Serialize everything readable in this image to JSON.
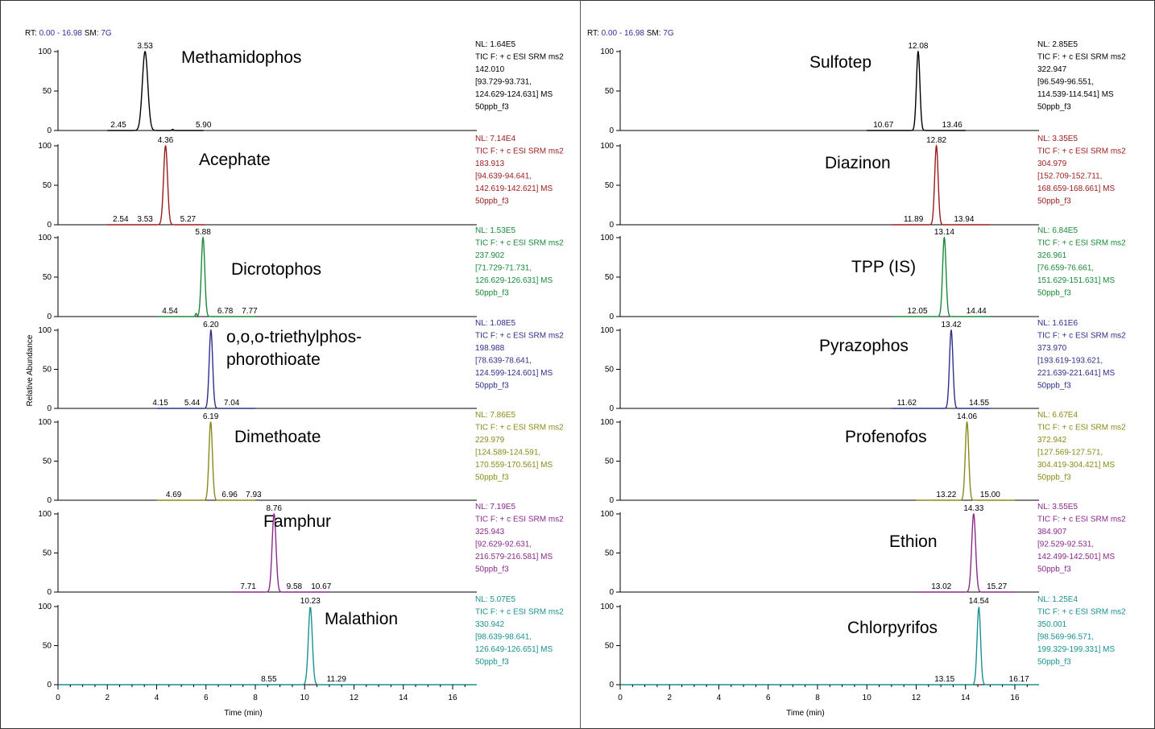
{
  "chart_data": [
    {
      "type": "line",
      "header": {
        "rt_label": "RT:",
        "rt_range": "0.00 - 16.98",
        "sm_label": "SM:",
        "sm_value": "7G"
      },
      "xlabel": "Time (min)",
      "ylabel": "Relative Abundance",
      "xlim": [
        0,
        16.98
      ],
      "ylim": [
        0,
        100
      ],
      "x_ticks": [
        0,
        2,
        4,
        6,
        8,
        10,
        12,
        14,
        16
      ],
      "y_ticks": [
        0,
        50,
        100
      ],
      "traces": [
        {
          "compound": "Methamidophos",
          "color": "#000000",
          "apex": 3.53,
          "width": 0.11,
          "baseline": [
            2.0,
            5.9
          ],
          "peaks": [
            {
              "x": 3.53,
              "y": 100
            },
            {
              "x": 2.45,
              "y": 0.5
            },
            {
              "x": 4.65,
              "y": 1.5
            },
            {
              "x": 5.9,
              "y": 0.3
            }
          ],
          "info": [
            "NL: 1.64E5",
            "TIC F: + c ESI SRM ms2",
            "142.010",
            "[93.729-93.731,",
            "124.629-124.631]  MS",
            "50ppb_f3"
          ]
        },
        {
          "compound": "Acephate",
          "color": "#9b1b1b",
          "apex": 4.36,
          "width": 0.08,
          "baseline": [
            2.0,
            5.95
          ],
          "peaks": [
            {
              "x": 4.36,
              "y": 100
            },
            {
              "x": 2.54,
              "y": 0.3
            },
            {
              "x": 3.53,
              "y": 0.3
            },
            {
              "x": 5.27,
              "y": 0.5
            }
          ],
          "info": [
            "NL: 7.14E4",
            "TIC F: + c ESI SRM ms2",
            "183.913",
            "[94.639-94.641,",
            "142.619-142.621]  MS",
            "50ppb_f3"
          ]
        },
        {
          "compound": "Dicrotophos",
          "color": "#1a8a3a",
          "apex": 5.88,
          "width": 0.07,
          "baseline": [
            4.0,
            8.0
          ],
          "peaks": [
            {
              "x": 5.88,
              "y": 100
            },
            {
              "x": 4.54,
              "y": 0.5
            },
            {
              "x": 5.6,
              "y": 4
            },
            {
              "x": 6.78,
              "y": 0.5
            },
            {
              "x": 7.77,
              "y": 0.3
            }
          ],
          "info": [
            "NL: 1.53E5",
            "TIC F: + c ESI SRM ms2",
            "237.902",
            "[71.729-71.731,",
            "126.629-126.631]  MS",
            "50ppb_f3"
          ]
        },
        {
          "compound": "o,o,o-triethylphos-",
          "compound2": "phorothioate",
          "color": "#2e2e8c",
          "apex": 6.2,
          "width": 0.07,
          "baseline": [
            4.0,
            8.0
          ],
          "peaks": [
            {
              "x": 6.2,
              "y": 100
            },
            {
              "x": 4.15,
              "y": 0.5
            },
            {
              "x": 5.44,
              "y": 0.5
            },
            {
              "x": 7.04,
              "y": 0.5
            }
          ],
          "info": [
            "NL: 1.08E5",
            "TIC F: + c ESI SRM ms2",
            "198.988",
            "[78.639-78.641,",
            "124.599-124.601]  MS",
            "50ppb_f3"
          ]
        },
        {
          "compound": "Dimethoate",
          "color": "#8a8a1a",
          "apex": 6.19,
          "width": 0.07,
          "baseline": [
            4.0,
            8.0
          ],
          "peaks": [
            {
              "x": 6.19,
              "y": 100
            },
            {
              "x": 4.69,
              "y": 0.5
            },
            {
              "x": 6.96,
              "y": 0.5
            },
            {
              "x": 7.93,
              "y": 0.3
            }
          ],
          "info": [
            "NL: 7.86E5",
            "TIC F: + c ESI SRM ms2",
            "229.979",
            "[124.589-124.591,",
            "170.559-170.561]  MS",
            "50ppb_f3"
          ]
        },
        {
          "compound": "Famphur",
          "color": "#8a2a8a",
          "apex": 8.76,
          "width": 0.08,
          "baseline": [
            7.0,
            11.0
          ],
          "peaks": [
            {
              "x": 8.76,
              "y": 100
            },
            {
              "x": 7.71,
              "y": 0.5
            },
            {
              "x": 9.58,
              "y": 0.5
            },
            {
              "x": 10.67,
              "y": 0.3
            }
          ],
          "info": [
            "NL: 7.19E5",
            "TIC F: + c ESI SRM ms2",
            "325.943",
            "[92.629-92.631,",
            "216.579-216.581]  MS",
            "50ppb_f3"
          ]
        },
        {
          "compound": "Malathion",
          "color": "#1a9090",
          "apex": 10.23,
          "width": 0.08,
          "baseline": [
            0.0,
            16.98
          ],
          "peaks": [
            {
              "x": 10.23,
              "y": 100
            },
            {
              "x": 8.55,
              "y": 0.5
            },
            {
              "x": 11.29,
              "y": 0.5
            }
          ],
          "info": [
            "NL: 5.07E5",
            "TIC F: + c ESI SRM ms2",
            "330.942",
            "[98.639-98.641,",
            "126.649-126.651]  MS",
            "50ppb_f3"
          ]
        }
      ]
    },
    {
      "type": "line",
      "header": {
        "rt_label": "RT:",
        "rt_range": "0.00 - 16.98",
        "sm_label": "SM:",
        "sm_value": "7G"
      },
      "xlabel": "Time (min)",
      "ylabel": "",
      "xlim": [
        0,
        16.98
      ],
      "ylim": [
        0,
        100
      ],
      "x_ticks": [
        0,
        2,
        4,
        6,
        8,
        10,
        12,
        14,
        16
      ],
      "y_ticks": [
        0,
        50,
        100
      ],
      "traces": [
        {
          "compound": "Sulfotep",
          "color": "#000000",
          "apex": 12.08,
          "width": 0.07,
          "baseline": [
            10.0,
            14.0
          ],
          "peaks": [
            {
              "x": 12.08,
              "y": 100
            },
            {
              "x": 10.67,
              "y": 0.3
            },
            {
              "x": 13.46,
              "y": 0.5
            }
          ],
          "info": [
            "NL: 2.85E5",
            "TIC F: + c ESI SRM ms2",
            "322.947",
            "[96.549-96.551,",
            "114.539-114.541]  MS",
            "50ppb_f3"
          ]
        },
        {
          "compound": "Diazinon",
          "color": "#9b1b1b",
          "apex": 12.82,
          "width": 0.07,
          "baseline": [
            11.0,
            15.0
          ],
          "peaks": [
            {
              "x": 12.82,
              "y": 100
            },
            {
              "x": 11.89,
              "y": 0.5
            },
            {
              "x": 13.94,
              "y": 0.5
            }
          ],
          "info": [
            "NL: 3.35E5",
            "TIC F: + c ESI SRM ms2",
            "304.979",
            "[152.709-152.711,",
            "168.659-168.661]  MS",
            "50ppb_f3"
          ]
        },
        {
          "compound": "TPP (IS)",
          "color": "#1a8a3a",
          "apex": 13.14,
          "width": 0.07,
          "baseline": [
            11.0,
            15.0
          ],
          "peaks": [
            {
              "x": 13.14,
              "y": 100
            },
            {
              "x": 12.05,
              "y": 0.5
            },
            {
              "x": 14.44,
              "y": 0.5
            }
          ],
          "info": [
            "NL: 6.84E5",
            "TIC F: + c ESI SRM ms2",
            "326.961",
            "[76.659-76.661,",
            "151.629-151.631]  MS",
            "50ppb_f3"
          ]
        },
        {
          "compound": "Pyrazophos",
          "color": "#2e2e8c",
          "apex": 13.42,
          "width": 0.07,
          "baseline": [
            11.0,
            15.0
          ],
          "peaks": [
            {
              "x": 13.42,
              "y": 100
            },
            {
              "x": 11.62,
              "y": 0.5
            },
            {
              "x": 14.55,
              "y": 0.5
            }
          ],
          "info": [
            "NL: 1.61E6",
            "TIC F: + c ESI SRM ms2",
            "373.970",
            "[193.619-193.621,",
            "221.639-221.641]  MS",
            "50ppb_f3"
          ]
        },
        {
          "compound": "Profenofos",
          "color": "#8a8a1a",
          "apex": 14.06,
          "width": 0.07,
          "baseline": [
            12.0,
            16.0
          ],
          "peaks": [
            {
              "x": 14.06,
              "y": 100
            },
            {
              "x": 13.22,
              "y": 0.5
            },
            {
              "x": 15.0,
              "y": 0.5
            }
          ],
          "info": [
            "NL: 6.67E4",
            "TIC F: + c ESI SRM ms2",
            "372.942",
            "[127.569-127.571,",
            "304.419-304.421]  MS",
            "50ppb_f3"
          ]
        },
        {
          "compound": "Ethion",
          "color": "#8a2a8a",
          "apex": 14.33,
          "width": 0.08,
          "baseline": [
            12.0,
            16.0
          ],
          "peaks": [
            {
              "x": 14.33,
              "y": 100
            },
            {
              "x": 13.02,
              "y": 0.5
            },
            {
              "x": 15.27,
              "y": 0.5
            }
          ],
          "info": [
            "NL: 3.55E5",
            "TIC F: + c ESI SRM ms2",
            "384.907",
            "[92.529-92.531,",
            "142.499-142.501]  MS",
            "50ppb_f3"
          ]
        },
        {
          "compound": "Chlorpyrifos",
          "color": "#1a9090",
          "apex": 14.54,
          "width": 0.07,
          "baseline": [
            0.0,
            16.98
          ],
          "peaks": [
            {
              "x": 14.54,
              "y": 100
            },
            {
              "x": 13.15,
              "y": 0.5
            },
            {
              "x": 16.17,
              "y": 0.5
            }
          ],
          "info": [
            "NL: 1.25E4",
            "TIC F: + c ESI SRM ms2",
            "350.001",
            "[98.569-96.571,",
            "199.329-199.331]  MS",
            "50ppb_f3"
          ]
        }
      ]
    }
  ],
  "colors": {
    "header_value": "#3030a0",
    "axis": "#000000"
  }
}
